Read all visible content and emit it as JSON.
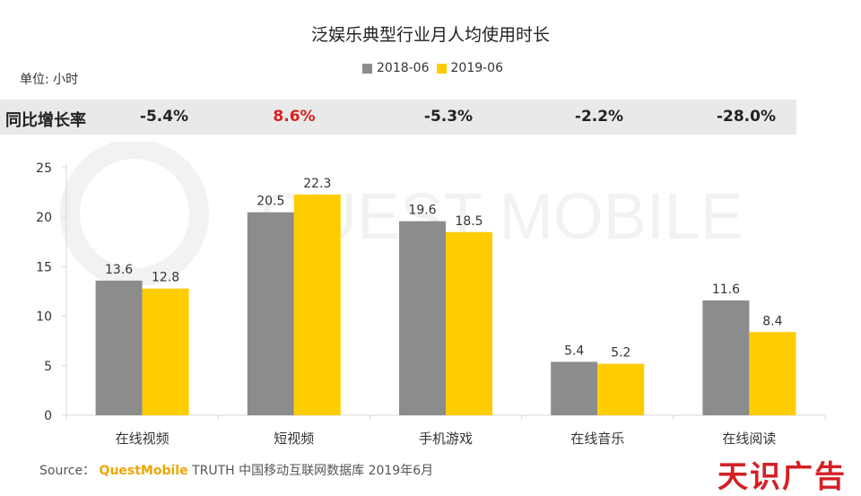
{
  "title": "泛娱乐典型行业月人均使用时长",
  "unit_label": "单位: 小时",
  "legend": [
    {
      "label": "2018-06",
      "color": "#8c8c8c"
    },
    {
      "label": "2019-06",
      "color": "#ffcc00"
    }
  ],
  "growth": {
    "label": "同比增长率",
    "values": [
      "-5.4%",
      "8.6%",
      "-5.3%",
      "-2.2%",
      "-28.0%"
    ],
    "highlight_color": "#d81e1e",
    "highlight_index": 1
  },
  "chart_data": {
    "type": "bar",
    "categories": [
      "在线视频",
      "短视频",
      "手机游戏",
      "在线音乐",
      "在线阅读"
    ],
    "series": [
      {
        "name": "2018-06",
        "values": [
          13.6,
          20.5,
          19.6,
          5.4,
          11.6
        ],
        "color": "#8c8c8c"
      },
      {
        "name": "2019-06",
        "values": [
          12.8,
          22.3,
          18.5,
          5.2,
          8.4
        ],
        "color": "#ffcc00"
      }
    ],
    "ylim": [
      0,
      25
    ],
    "yticks": [
      0,
      5,
      10,
      15,
      20,
      25
    ],
    "grid": false,
    "legend_position": "top"
  },
  "source": {
    "prefix": "Source：",
    "brand": "QuestMobile",
    "text": "TRUTH 中国移动互联网数据库 2019年6月"
  },
  "watermark": "QUEST MOBILE",
  "corner_logo": "天识广告"
}
